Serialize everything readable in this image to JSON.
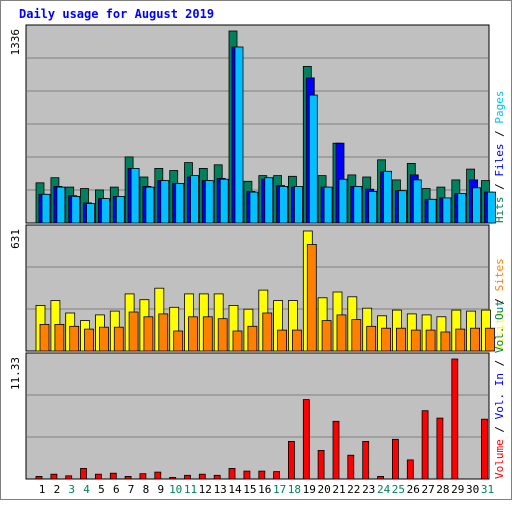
{
  "chart_data": {
    "type": "bar",
    "title": "Daily usage for August 2019",
    "days": [
      "1",
      "2",
      "3",
      "4",
      "5",
      "6",
      "7",
      "8",
      "9",
      "10",
      "11",
      "12",
      "13",
      "14",
      "15",
      "16",
      "17",
      "18",
      "19",
      "20",
      "21",
      "22",
      "23",
      "24",
      "25",
      "26",
      "27",
      "28",
      "29",
      "30",
      "31"
    ],
    "weekend_days": [
      "3",
      "4",
      "10",
      "11",
      "17",
      "18",
      "24",
      "25",
      "31"
    ],
    "panels": [
      {
        "id": "hits",
        "max_label": "1336",
        "ylim": [
          0,
          1336
        ],
        "legend": [
          {
            "text": "Hits",
            "color": "#00805c"
          },
          {
            "text": "Files",
            "color": "#0000ff"
          },
          {
            "text": "Pages",
            "color": "#00c0ff"
          }
        ],
        "series": [
          {
            "name": "Hits",
            "color": "#00805c",
            "values": [
              280,
              315,
              250,
              240,
              230,
              250,
              460,
              320,
              380,
              365,
              420,
              380,
              405,
              1336,
              290,
              330,
              330,
              325,
              1090,
              330,
              555,
              335,
              320,
              440,
              300,
              415,
              240,
              250,
              300,
              375,
              295
            ]
          },
          {
            "name": "Files",
            "color": "#0000ff",
            "values": [
              200,
              255,
              190,
              140,
              170,
              185,
              380,
              255,
              295,
              275,
              320,
              295,
              310,
              1225,
              220,
              305,
              260,
              250,
              1010,
              250,
              555,
              255,
              235,
              355,
              225,
              335,
              165,
              175,
              205,
              300,
              215
            ]
          },
          {
            "name": "Pages",
            "color": "#00c0ff",
            "values": [
              200,
              250,
              185,
              135,
              170,
              185,
              380,
              250,
              295,
              275,
              330,
              295,
              305,
              1225,
              215,
              315,
              255,
              255,
              890,
              250,
              305,
              255,
              220,
              360,
              225,
              300,
              165,
              175,
              205,
              245,
              215
            ]
          }
        ]
      },
      {
        "id": "visits",
        "max_label": "631",
        "ylim": [
          0,
          631
        ],
        "legend": [
          {
            "text": "Visits",
            "color": "#ffff00"
          },
          {
            "text": "Sites",
            "color": "#ff8000"
          }
        ],
        "series": [
          {
            "name": "Visits",
            "color": "#ffff00",
            "values": [
              240,
              265,
              200,
              160,
              190,
              210,
              300,
              270,
              330,
              230,
              300,
              300,
              300,
              240,
              220,
              320,
              265,
              265,
              631,
              280,
              310,
              285,
              225,
              185,
              215,
              195,
              190,
              180,
              215,
              210,
              215
            ]
          },
          {
            "name": "Sites",
            "color": "#ff8000",
            "values": [
              140,
              140,
              130,
              115,
              125,
              125,
              205,
              180,
              195,
              105,
              180,
              180,
              170,
              105,
              130,
              200,
              110,
              110,
              560,
              160,
              190,
              165,
              130,
              120,
              120,
              110,
              110,
              100,
              115,
              120,
              120
            ]
          }
        ]
      },
      {
        "id": "volume",
        "max_label": "11.33",
        "ylim": [
          0,
          11.33
        ],
        "legend": [
          {
            "text": "Volume",
            "color": "#ff0000"
          },
          {
            "text": "Vol. In",
            "color": "#0000ff"
          },
          {
            "text": "Vol. Out",
            "color": "#00805c"
          }
        ],
        "series": [
          {
            "name": "Volume",
            "color": "#ff0000",
            "values": [
              0.25,
              0.45,
              0.3,
              1.0,
              0.45,
              0.55,
              0.25,
              0.5,
              0.65,
              0.15,
              0.35,
              0.45,
              0.35,
              1.0,
              0.75,
              0.75,
              0.7,
              3.55,
              7.5,
              2.7,
              5.45,
              2.25,
              3.55,
              0.25,
              3.75,
              1.8,
              6.45,
              5.75,
              11.33,
              0.0,
              5.65
            ]
          }
        ]
      }
    ]
  }
}
